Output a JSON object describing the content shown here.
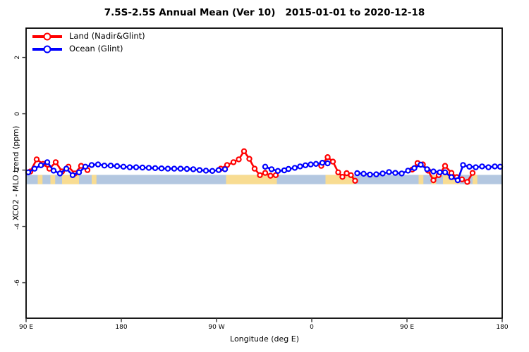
{
  "title": "7.5S-2.5S Annual Mean (Ver 10)   2015-01-01 to 2020-12-18",
  "legend": {
    "items": [
      {
        "label": "Land (Nadir&Glint)",
        "color": "#ff0000"
      },
      {
        "label": "Ocean (Glint)",
        "color": "#0000ff"
      }
    ]
  },
  "chart_data": {
    "type": "line",
    "title": "7.5S-2.5S Annual Mean (Ver 10)   2015-01-01 to 2020-12-18",
    "xlabel": "Longitude (deg E)",
    "ylabel": "XCO2 - MLO trend (ppm)",
    "xlim": [
      90,
      540
    ],
    "ylim": [
      -7.26,
      3.04
    ],
    "grid": false,
    "legend_position": "top-left-inside",
    "x_ticks": [
      {
        "v": 90,
        "label": "90 E"
      },
      {
        "v": 180,
        "label": "180"
      },
      {
        "v": 270,
        "label": "90 W"
      },
      {
        "v": 360,
        "label": "0"
      },
      {
        "v": 450,
        "label": "90 E"
      },
      {
        "v": 540,
        "label": "180"
      }
    ],
    "y_ticks": [
      {
        "v": 2,
        "label": "2"
      },
      {
        "v": 0,
        "label": "0"
      },
      {
        "v": -2,
        "label": "-2"
      },
      {
        "v": -4,
        "label": "-4"
      },
      {
        "v": -6,
        "label": "-6"
      }
    ],
    "x_axis_note": "longitude wraps eastward from 90E around the globe to 180; values above 180 are continuous degrees east",
    "series": [
      {
        "name": "Land (Nadir&Glint)",
        "color": "#ff0000",
        "points": [
          [
            94,
            -2.05
          ],
          [
            100,
            -1.62
          ],
          [
            106,
            -1.78
          ],
          [
            112,
            -1.95
          ],
          [
            118,
            -1.72
          ],
          [
            124,
            -2.05
          ],
          [
            130,
            -1.88
          ],
          [
            136,
            -2.12
          ],
          [
            142,
            -1.85
          ],
          [
            148,
            -2.0
          ],
          null,
          [
            274,
            -1.95
          ],
          [
            280,
            -1.82
          ],
          [
            286,
            -1.72
          ],
          [
            291,
            -1.62
          ],
          [
            296,
            -1.33
          ],
          [
            301,
            -1.6
          ],
          [
            306,
            -1.95
          ],
          [
            311,
            -2.18
          ],
          [
            316,
            -2.1
          ],
          [
            321,
            -2.2
          ],
          [
            326,
            -2.18
          ],
          null,
          [
            369,
            -1.85
          ],
          [
            375,
            -1.54
          ],
          [
            380,
            -1.7
          ],
          [
            385,
            -2.08
          ],
          [
            389,
            -2.24
          ],
          [
            393,
            -2.11
          ],
          [
            397,
            -2.18
          ],
          [
            401,
            -2.38
          ],
          null,
          [
            455,
            -1.98
          ],
          [
            460,
            -1.75
          ],
          [
            465,
            -1.8
          ],
          [
            470,
            -2.02
          ],
          [
            475,
            -2.36
          ],
          [
            480,
            -2.18
          ],
          [
            486,
            -1.85
          ],
          [
            492,
            -2.1
          ],
          [
            497,
            -2.25
          ],
          [
            502,
            -2.33
          ],
          [
            507,
            -2.42
          ],
          [
            512,
            -2.1
          ]
        ]
      },
      {
        "name": "Ocean (Glint)",
        "color": "#0000ff",
        "points": [
          [
            92,
            -2.08
          ],
          [
            98,
            -1.95
          ],
          [
            104,
            -1.83
          ],
          [
            110,
            -1.72
          ],
          [
            116,
            -2.02
          ],
          [
            122,
            -2.12
          ],
          [
            128,
            -1.95
          ],
          [
            134,
            -2.18
          ],
          [
            140,
            -2.08
          ],
          [
            146,
            -1.88
          ],
          [
            152,
            -1.82
          ],
          [
            158,
            -1.8
          ],
          [
            164,
            -1.84
          ],
          [
            170,
            -1.84
          ],
          [
            176,
            -1.86
          ],
          [
            182,
            -1.88
          ],
          [
            188,
            -1.9
          ],
          [
            194,
            -1.9
          ],
          [
            200,
            -1.91
          ],
          [
            206,
            -1.92
          ],
          [
            212,
            -1.93
          ],
          [
            218,
            -1.94
          ],
          [
            224,
            -1.95
          ],
          [
            230,
            -1.95
          ],
          [
            236,
            -1.95
          ],
          [
            242,
            -1.96
          ],
          [
            248,
            -1.97
          ],
          [
            254,
            -2.0
          ],
          [
            260,
            -2.02
          ],
          [
            266,
            -2.03
          ],
          [
            272,
            -2.0
          ],
          [
            278,
            -1.97
          ],
          null,
          [
            316,
            -1.88
          ],
          [
            322,
            -1.97
          ],
          [
            328,
            -2.03
          ],
          [
            334,
            -2.01
          ],
          [
            338,
            -1.96
          ],
          [
            344,
            -1.92
          ],
          [
            349,
            -1.87
          ],
          [
            354,
            -1.83
          ],
          [
            359,
            -1.8
          ],
          [
            364,
            -1.78
          ],
          [
            370,
            -1.74
          ],
          [
            375,
            -1.76
          ],
          null,
          [
            403,
            -2.11
          ],
          [
            409,
            -2.13
          ],
          [
            415,
            -2.16
          ],
          [
            421,
            -2.15
          ],
          [
            427,
            -2.12
          ],
          [
            433,
            -2.07
          ],
          [
            439,
            -2.1
          ],
          [
            445,
            -2.12
          ],
          [
            451,
            -2.02
          ],
          [
            457,
            -1.93
          ],
          [
            463,
            -1.81
          ],
          [
            469,
            -1.97
          ],
          [
            475,
            -2.05
          ],
          [
            481,
            -2.08
          ],
          [
            486,
            -2.08
          ],
          [
            492,
            -2.25
          ],
          [
            498,
            -2.36
          ],
          [
            503,
            -1.82
          ],
          [
            509,
            -1.88
          ],
          [
            515,
            -1.9
          ],
          [
            521,
            -1.87
          ],
          [
            527,
            -1.9
          ],
          [
            533,
            -1.87
          ],
          [
            538,
            -1.88
          ]
        ]
      }
    ],
    "surface_strip": {
      "description": "map strip of surface type along 7.5S-2.5S latitude band",
      "ocean_color": "#b3c7e0",
      "land_color": "#f8dc92",
      "value_top": -2.17,
      "value_bottom": -2.5,
      "land_ranges": [
        [
          101,
          105.5
        ],
        [
          113,
          117.5
        ],
        [
          124,
          140
        ],
        [
          152,
          156.5
        ],
        [
          279,
          327
        ],
        [
          373,
          400
        ],
        [
          461,
          465.5
        ],
        [
          473,
          477.5
        ],
        [
          484,
          500
        ],
        [
          512,
          516.5
        ]
      ]
    }
  }
}
